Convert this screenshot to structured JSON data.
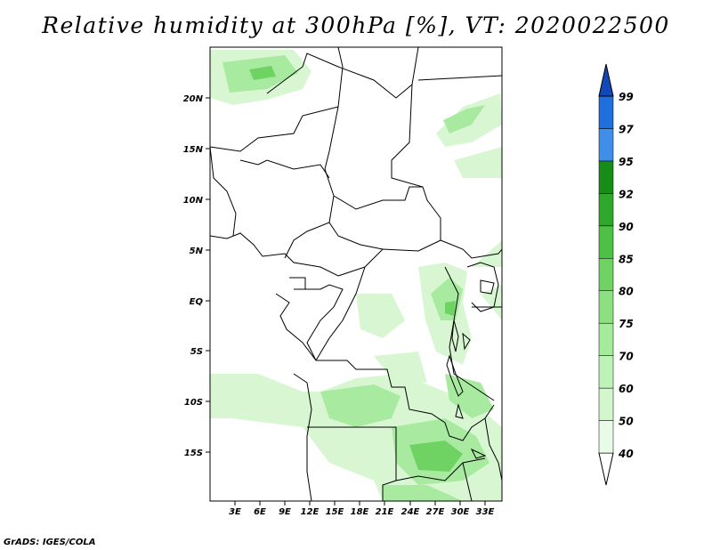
{
  "title": "Relative humidity at 300hPa [%], VT: 2020022500",
  "credit": "GrADS: IGES/COLA",
  "map": {
    "lat_ticks": [
      "20N",
      "15N",
      "10N",
      "5N",
      "EQ",
      "5S",
      "10S",
      "15S"
    ],
    "lon_ticks": [
      "3E",
      "6E",
      "9E",
      "12E",
      "15E",
      "18E",
      "21E",
      "24E",
      "27E",
      "30E",
      "33E"
    ]
  },
  "colorbar": {
    "levels": [
      "40",
      "50",
      "60",
      "70",
      "75",
      "80",
      "85",
      "90",
      "92",
      "95",
      "97",
      "99"
    ],
    "colors": [
      "#ffffff",
      "#e8fbe6",
      "#d2f7cd",
      "#bdf3b7",
      "#a5eb9c",
      "#8de07f",
      "#6fd363",
      "#4ec045",
      "#2ea72b",
      "#178d17",
      "#3f8fe8",
      "#1f6fdc",
      "#1448b8"
    ]
  }
}
